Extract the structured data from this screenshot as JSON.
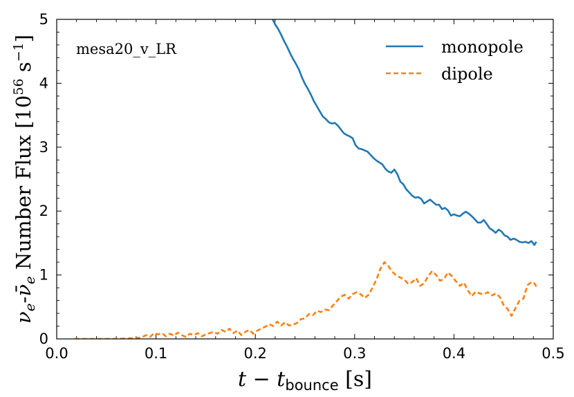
{
  "chart_data": {
    "type": "line",
    "annotation": "mesa20_v_LR",
    "xlabel_main": "t − t",
    "xlabel_sub": "bounce",
    "xlabel_unit": " [s]",
    "ylabel_nu1": "ν",
    "ylabel_sub1": "e",
    "ylabel_dash": "-",
    "ylabel_nu2": "ν̄",
    "ylabel_sub2": "e",
    "ylabel_text": " Number Flux [10",
    "ylabel_exp": "56",
    "ylabel_unit": " s",
    "ylabel_exp2": "−1",
    "ylabel_close": "]",
    "xlim": [
      0.0,
      0.5
    ],
    "ylim": [
      0,
      5
    ],
    "xticks": [
      "0.0",
      "0.1",
      "0.2",
      "0.3",
      "0.4",
      "0.5"
    ],
    "yticks": [
      "0",
      "1",
      "2",
      "3",
      "4",
      "5"
    ],
    "legend": [
      "monopole",
      "dipole"
    ],
    "colors": {
      "monopole": "#1f77b4",
      "dipole": "#ff7f0e"
    },
    "series": [
      {
        "name": "monopole",
        "x": [
          0.217,
          0.22,
          0.223,
          0.226,
          0.229,
          0.232,
          0.235,
          0.238,
          0.241,
          0.244,
          0.247,
          0.25,
          0.253,
          0.256,
          0.259,
          0.262,
          0.265,
          0.268,
          0.271,
          0.274,
          0.277,
          0.28,
          0.283,
          0.286,
          0.289,
          0.292,
          0.295,
          0.298,
          0.301,
          0.304,
          0.307,
          0.31,
          0.313,
          0.316,
          0.319,
          0.322,
          0.325,
          0.328,
          0.331,
          0.334,
          0.337,
          0.34,
          0.343,
          0.346,
          0.349,
          0.352,
          0.355,
          0.358,
          0.361,
          0.364,
          0.367,
          0.37,
          0.373,
          0.376,
          0.379,
          0.382,
          0.385,
          0.388,
          0.391,
          0.394,
          0.397,
          0.4,
          0.403,
          0.406,
          0.409,
          0.412,
          0.415,
          0.418,
          0.421,
          0.424,
          0.427,
          0.43,
          0.433,
          0.436,
          0.439,
          0.442,
          0.445,
          0.448,
          0.451,
          0.454,
          0.457,
          0.46,
          0.463,
          0.466,
          0.469,
          0.472,
          0.475,
          0.478,
          0.481,
          0.483
        ],
        "y": [
          5.02,
          4.92,
          4.85,
          4.76,
          4.66,
          4.57,
          4.47,
          4.38,
          4.3,
          4.21,
          4.09,
          3.99,
          3.91,
          3.82,
          3.72,
          3.64,
          3.56,
          3.48,
          3.44,
          3.39,
          3.37,
          3.38,
          3.34,
          3.28,
          3.22,
          3.19,
          3.17,
          3.14,
          3.03,
          2.98,
          2.97,
          2.95,
          2.93,
          2.88,
          2.83,
          2.79,
          2.76,
          2.73,
          2.66,
          2.62,
          2.6,
          2.65,
          2.58,
          2.46,
          2.42,
          2.34,
          2.29,
          2.24,
          2.21,
          2.22,
          2.19,
          2.12,
          2.15,
          2.18,
          2.14,
          2.1,
          2.1,
          2.03,
          2.05,
          2.01,
          1.93,
          1.95,
          1.93,
          1.92,
          1.96,
          1.99,
          1.96,
          1.92,
          1.87,
          1.82,
          1.82,
          1.86,
          1.8,
          1.73,
          1.7,
          1.66,
          1.71,
          1.68,
          1.62,
          1.6,
          1.55,
          1.57,
          1.55,
          1.52,
          1.51,
          1.52,
          1.5,
          1.53,
          1.47,
          1.52
        ]
      },
      {
        "name": "dipole",
        "x": [
          0.018,
          0.03,
          0.045,
          0.06,
          0.075,
          0.085,
          0.09,
          0.094,
          0.098,
          0.102,
          0.106,
          0.11,
          0.114,
          0.118,
          0.122,
          0.126,
          0.13,
          0.134,
          0.138,
          0.142,
          0.146,
          0.15,
          0.154,
          0.158,
          0.162,
          0.166,
          0.17,
          0.174,
          0.178,
          0.182,
          0.186,
          0.19,
          0.194,
          0.198,
          0.202,
          0.206,
          0.21,
          0.214,
          0.218,
          0.222,
          0.226,
          0.23,
          0.234,
          0.238,
          0.242,
          0.246,
          0.25,
          0.254,
          0.258,
          0.262,
          0.266,
          0.27,
          0.274,
          0.278,
          0.282,
          0.286,
          0.29,
          0.294,
          0.298,
          0.302,
          0.306,
          0.31,
          0.314,
          0.318,
          0.322,
          0.326,
          0.33,
          0.334,
          0.338,
          0.342,
          0.346,
          0.35,
          0.354,
          0.358,
          0.362,
          0.366,
          0.37,
          0.374,
          0.378,
          0.382,
          0.386,
          0.39,
          0.394,
          0.398,
          0.402,
          0.406,
          0.41,
          0.414,
          0.418,
          0.422,
          0.426,
          0.43,
          0.434,
          0.438,
          0.442,
          0.446,
          0.45,
          0.454,
          0.458,
          0.462,
          0.466,
          0.47,
          0.474,
          0.478,
          0.481,
          0.483
        ],
        "y": [
          0.0,
          0.0,
          0.0,
          0.0,
          0.01,
          0.02,
          0.06,
          0.03,
          0.09,
          0.07,
          0.09,
          0.04,
          0.08,
          0.05,
          0.1,
          0.06,
          0.03,
          0.08,
          0.06,
          0.09,
          0.04,
          0.07,
          0.09,
          0.11,
          0.08,
          0.14,
          0.11,
          0.16,
          0.09,
          0.13,
          0.06,
          0.11,
          0.14,
          0.08,
          0.13,
          0.16,
          0.19,
          0.23,
          0.2,
          0.27,
          0.21,
          0.26,
          0.21,
          0.22,
          0.25,
          0.31,
          0.32,
          0.39,
          0.37,
          0.44,
          0.42,
          0.46,
          0.45,
          0.52,
          0.59,
          0.66,
          0.69,
          0.63,
          0.7,
          0.73,
          0.7,
          0.64,
          0.69,
          0.8,
          0.93,
          1.1,
          1.2,
          1.14,
          1.05,
          0.99,
          0.96,
          0.93,
          0.86,
          0.89,
          0.95,
          0.83,
          0.87,
          0.98,
          1.06,
          1.0,
          0.91,
          0.94,
          1.04,
          0.98,
          0.9,
          0.83,
          0.88,
          0.76,
          0.67,
          0.74,
          0.71,
          0.7,
          0.73,
          0.68,
          0.71,
          0.66,
          0.53,
          0.47,
          0.36,
          0.48,
          0.6,
          0.63,
          0.84,
          0.89,
          0.87,
          0.82
        ]
      }
    ]
  }
}
